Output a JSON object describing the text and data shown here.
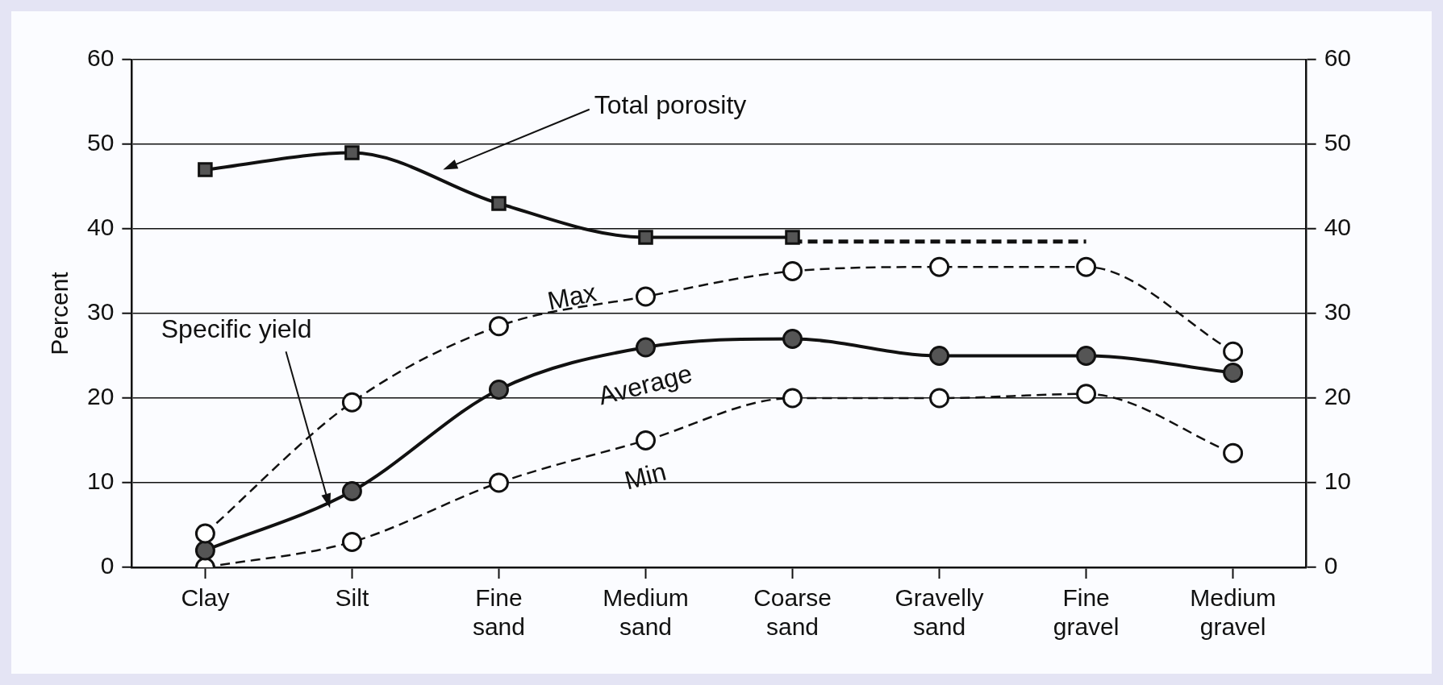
{
  "chart_data": {
    "type": "line",
    "ylabel": "Percent",
    "categories": [
      "Clay",
      "Silt",
      "Fine sand",
      "Medium sand",
      "Coarse sand",
      "Gravelly sand",
      "Fine gravel",
      "Medium gravel"
    ],
    "series": [
      {
        "name": "Total porosity",
        "color": "#111111",
        "marker": "square",
        "line_style": "solid",
        "values": [
          47,
          49,
          43,
          39,
          39,
          null,
          null,
          null
        ]
      },
      {
        "color": "#111111",
        "marker": "none",
        "line_style": "dashed",
        "values": [
          null,
          null,
          null,
          null,
          38.5,
          38.5,
          38.5,
          null
        ]
      },
      {
        "name": "Max",
        "color": "#111111",
        "marker": "circle",
        "line_style": "dashed",
        "values": [
          4,
          19.5,
          28.5,
          32,
          35,
          35.5,
          35.5,
          25.5
        ]
      },
      {
        "name": "Average",
        "color": "#111111",
        "marker": "circle",
        "line_style": "solid",
        "values": [
          2,
          9,
          21,
          26,
          27,
          25,
          25,
          23
        ]
      },
      {
        "name": "Min",
        "color": "#111111",
        "marker": "circle",
        "line_style": "dashed",
        "values": [
          0,
          3,
          10,
          15,
          20,
          20,
          20.5,
          13.5
        ]
      }
    ],
    "annotations": [
      "Specific yield"
    ],
    "ylim": [
      0,
      60
    ],
    "yticks": [
      0,
      10,
      20,
      30,
      40,
      50,
      60
    ],
    "y2lim": [
      0,
      60
    ],
    "y2ticks": [
      0,
      10,
      20,
      30,
      40,
      50,
      60
    ],
    "grid": "y",
    "legend": false
  }
}
